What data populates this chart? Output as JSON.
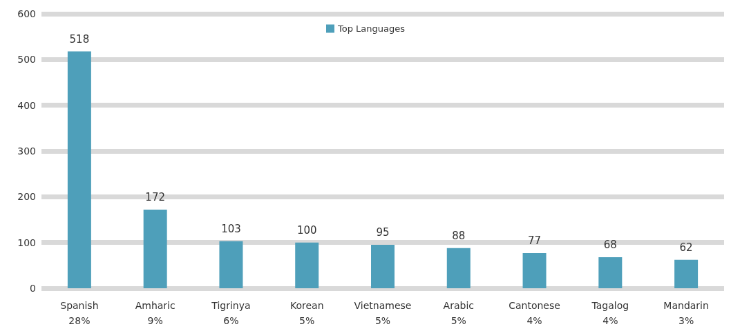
{
  "chart_data": {
    "type": "bar",
    "categories": [
      "Spanish\n28%",
      "Amharic\n9%",
      "Tigrinya\n6%",
      "Korean\n5%",
      "Vietnamese\n5%",
      "Arabic\n5%",
      "Cantonese\n4%",
      "Tagalog\n4%",
      "Mandarin\n3%"
    ],
    "series": [
      {
        "name": "Top Languages",
        "color": "#4e9fba",
        "values": [
          518,
          172,
          103,
          100,
          95,
          88,
          77,
          68,
          62
        ]
      }
    ],
    "ylim": [
      0,
      600
    ],
    "yticks": [
      0,
      100,
      200,
      300,
      400,
      500,
      600
    ],
    "grid": "y",
    "legend": "top",
    "data_labels": true
  }
}
